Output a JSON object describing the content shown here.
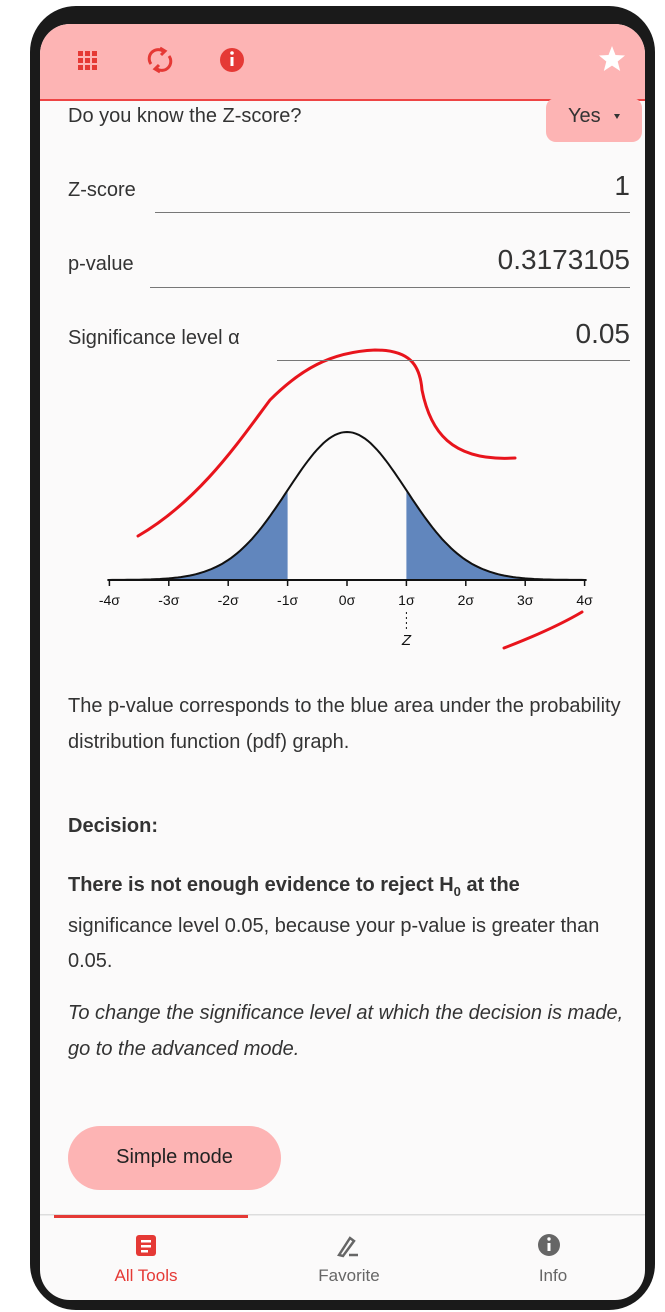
{
  "form": {
    "question": "Do you know the Z-score?",
    "answer": "Yes",
    "fields": [
      {
        "label": "Z-score",
        "value": "1"
      },
      {
        "label": "p-value",
        "value": "0.3173105"
      },
      {
        "label": "Significance level α",
        "value": "0.05"
      }
    ]
  },
  "graph": {
    "axis_labels": [
      "-4σ",
      "-3σ",
      "-2σ",
      "-1σ",
      "0σ",
      "1σ",
      "2σ",
      "3σ",
      "4σ"
    ],
    "z_label": "Z"
  },
  "explanation": "The p-value corresponds to the blue area under the probability distribution function (pdf) graph.",
  "decision": {
    "heading": "Decision:",
    "statement_bold": "There is not enough evidence to reject H",
    "subscript": "0",
    "statement_bold_end": "at the",
    "statement_rest": "significance level 0.05, because your p-value is greater than 0.05.",
    "note": "To change the significance level at which the decision is made, go to the advanced mode."
  },
  "button": "Simple mode",
  "nav": [
    "All Tools",
    "Favorite",
    "Info"
  ]
}
